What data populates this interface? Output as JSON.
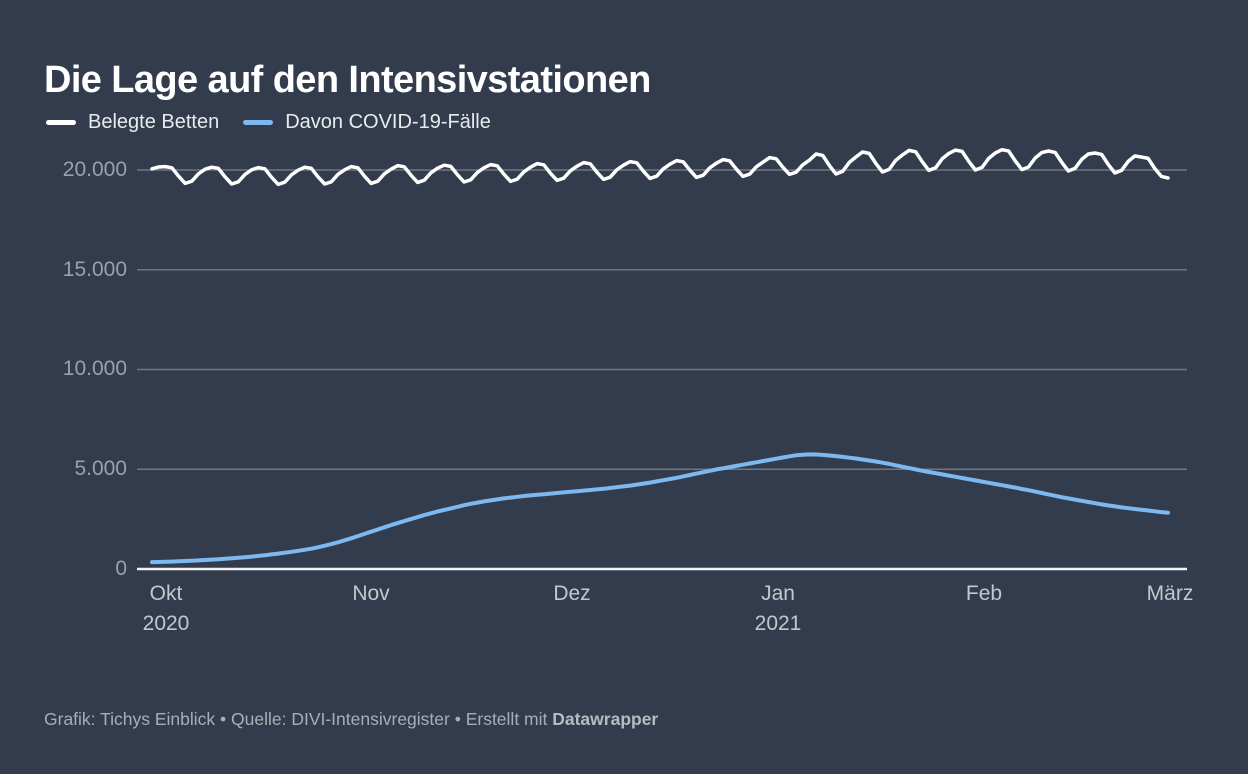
{
  "title": "Die Lage auf den Intensivstationen",
  "legend": [
    {
      "label": "Belegte Betten",
      "color": "#ffffff"
    },
    {
      "label": "Davon COVID-19-Fälle",
      "color": "#7db8f0"
    }
  ],
  "footer": {
    "text": "Grafik: Tichys Einblick • Quelle: DIVI-Intensivregister • Erstellt mit ",
    "bold": "Datawrapper"
  },
  "chart_data": {
    "type": "line",
    "title": "Die Lage auf den Intensivstationen",
    "x_start": "2020-09-29",
    "x_end": "2021-03-01",
    "x_frequency": "daily",
    "ylim": [
      0,
      21500
    ],
    "grid": "horizontal",
    "legend_position": "top-left",
    "yticks": [
      {
        "value": 20000,
        "label": "20.000"
      },
      {
        "value": 15000,
        "label": "15.000"
      },
      {
        "value": 10000,
        "label": "10.000"
      },
      {
        "value": 5000,
        "label": "5.000"
      },
      {
        "value": 0,
        "label": "0"
      }
    ],
    "xticks": [
      {
        "label": "Okt",
        "year": "2020"
      },
      {
        "label": "Nov"
      },
      {
        "label": "Dez"
      },
      {
        "label": "Jan",
        "year": "2021"
      },
      {
        "label": "Feb"
      },
      {
        "label": "März"
      }
    ],
    "series": [
      {
        "name": "Belegte Betten",
        "color": "#ffffff",
        "width": 3.5,
        "values": [
          20060,
          20150,
          20170,
          20110,
          19690,
          19330,
          19440,
          19810,
          20040,
          20140,
          20080,
          19660,
          19300,
          19410,
          19780,
          20010,
          20120,
          20060,
          19640,
          19280,
          19390,
          19760,
          19990,
          20140,
          20080,
          19660,
          19300,
          19410,
          19780,
          20010,
          20170,
          20110,
          19690,
          19330,
          19440,
          19810,
          20040,
          20220,
          20160,
          19740,
          19380,
          19490,
          19860,
          20090,
          20240,
          20180,
          19760,
          19400,
          19510,
          19880,
          20110,
          20270,
          20210,
          19790,
          19430,
          19540,
          19910,
          20140,
          20320,
          20260,
          19840,
          19480,
          19590,
          19960,
          20190,
          20370,
          20310,
          19890,
          19530,
          19640,
          20010,
          20240,
          20420,
          20360,
          19940,
          19580,
          19690,
          20060,
          20290,
          20470,
          20410,
          19990,
          19630,
          19740,
          20110,
          20340,
          20520,
          20460,
          20040,
          19680,
          19790,
          20160,
          20390,
          20620,
          20560,
          20140,
          19780,
          19890,
          20260,
          20490,
          20800,
          20730,
          20230,
          19800,
          19930,
          20380,
          20650,
          20900,
          20830,
          20330,
          19900,
          20030,
          20480,
          20750,
          20980,
          20910,
          20410,
          19980,
          20110,
          20560,
          20830,
          21000,
          20930,
          20430,
          20000,
          20130,
          20580,
          20850,
          21020,
          20950,
          20450,
          20020,
          20150,
          20600,
          20870,
          20950,
          20880,
          20380,
          19950,
          20080,
          20530,
          20800,
          20850,
          20780,
          20280,
          19850,
          19980,
          20430,
          20700,
          20650,
          20580,
          20080,
          19680,
          19600
        ]
      },
      {
        "name": "Davon COVID-19-Fälle",
        "color": "#7db8f0",
        "width": 4,
        "values": [
          345,
          352,
          360,
          372,
          385,
          400,
          415,
          432,
          450,
          470,
          490,
          512,
          535,
          560,
          590,
          620,
          655,
          690,
          730,
          770,
          815,
          860,
          910,
          960,
          1020,
          1090,
          1170,
          1250,
          1340,
          1440,
          1540,
          1650,
          1760,
          1870,
          1980,
          2090,
          2200,
          2300,
          2400,
          2500,
          2600,
          2700,
          2790,
          2880,
          2960,
          3040,
          3120,
          3200,
          3270,
          3330,
          3390,
          3440,
          3490,
          3540,
          3580,
          3620,
          3660,
          3690,
          3720,
          3750,
          3780,
          3810,
          3840,
          3870,
          3900,
          3930,
          3960,
          3990,
          4020,
          4060,
          4100,
          4140,
          4180,
          4230,
          4280,
          4330,
          4390,
          4450,
          4510,
          4570,
          4640,
          4710,
          4780,
          4850,
          4920,
          4990,
          5050,
          5110,
          5170,
          5230,
          5290,
          5350,
          5410,
          5470,
          5530,
          5590,
          5650,
          5700,
          5730,
          5745,
          5740,
          5720,
          5690,
          5660,
          5620,
          5580,
          5540,
          5490,
          5440,
          5390,
          5330,
          5270,
          5200,
          5130,
          5060,
          4990,
          4920,
          4860,
          4800,
          4740,
          4680,
          4620,
          4560,
          4500,
          4440,
          4380,
          4320,
          4260,
          4200,
          4140,
          4080,
          4010,
          3950,
          3880,
          3810,
          3740,
          3670,
          3600,
          3540,
          3480,
          3420,
          3360,
          3300,
          3240,
          3190,
          3140,
          3090,
          3050,
          3010,
          2970,
          2930,
          2890,
          2850,
          2820
        ]
      }
    ]
  }
}
